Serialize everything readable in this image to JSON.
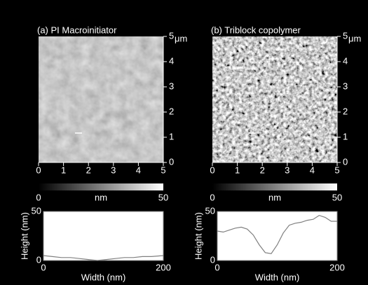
{
  "chart_data": [
    {
      "type": "afm",
      "title": "(a) PI Macroinitiator",
      "xlim": [
        0,
        5
      ],
      "ylim": [
        0,
        5
      ],
      "xticks": [
        0,
        1,
        2,
        3,
        4,
        5
      ],
      "yticks": [
        0,
        1,
        2,
        3,
        4,
        5
      ],
      "yunit": "μm"
    },
    {
      "type": "afm",
      "title": "(b) Triblock copolymer",
      "xlim": [
        0,
        5
      ],
      "ylim": [
        0,
        5
      ],
      "xticks": [
        0,
        1,
        2,
        3,
        4,
        5
      ],
      "yticks": [
        0,
        1,
        2,
        3,
        4,
        5
      ],
      "yunit": "μm"
    },
    {
      "type": "colorbar",
      "xlim": [
        0,
        50
      ],
      "xticks": [
        0,
        50
      ],
      "xlabel": "nm"
    },
    {
      "type": "colorbar",
      "xlim": [
        0,
        50
      ],
      "xticks": [
        0,
        50
      ],
      "xlabel": "nm"
    },
    {
      "type": "line",
      "x": [
        0,
        15,
        30,
        45,
        60,
        75,
        90,
        105,
        120,
        135,
        150,
        165,
        180,
        200
      ],
      "values": [
        5,
        4,
        3,
        3,
        2,
        1,
        0,
        1,
        2,
        3,
        3,
        4,
        4,
        5
      ],
      "color": "#808080",
      "xlim": [
        0,
        200
      ],
      "ylim": [
        0,
        50
      ],
      "xticks": [
        0,
        200
      ],
      "yticks": [
        0,
        50
      ],
      "xlabel": "Width (nm)",
      "ylabel": "Height (nm)"
    },
    {
      "type": "line",
      "x": [
        0,
        10,
        20,
        30,
        40,
        50,
        60,
        70,
        80,
        90,
        100,
        110,
        120,
        130,
        140,
        150,
        160,
        170,
        180,
        190,
        200
      ],
      "values": [
        30,
        29,
        31,
        33,
        34,
        32,
        26,
        16,
        8,
        7,
        16,
        28,
        36,
        38,
        39,
        41,
        42,
        46,
        44,
        40,
        40
      ],
      "color": "#808080",
      "xlim": [
        0,
        200
      ],
      "ylim": [
        0,
        50
      ],
      "xticks": [
        0,
        200
      ],
      "yticks": [
        0,
        50
      ],
      "xlabel": "Width (nm)",
      "ylabel": "Height (nm)"
    }
  ]
}
